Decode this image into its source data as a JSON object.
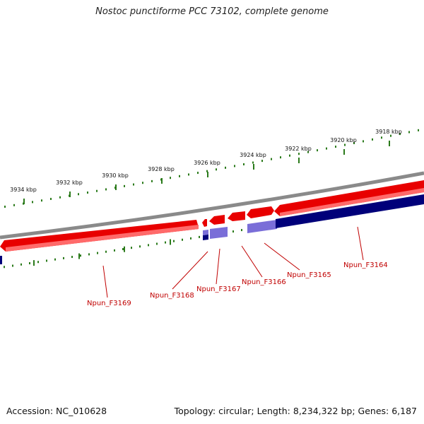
{
  "title": "Nostoc punctiforme PCC 73102, complete genome",
  "footer": {
    "accession": "Accession: NC_010628",
    "summary": "Topology: circular; Length: 8,234,322 bp; Genes: 6,187"
  },
  "colors": {
    "forward_gene": "#e80000",
    "forward_gene_light": "#ff6a6a",
    "reverse_gene": "#00007a",
    "reverse_gene_light": "#7a6ed8",
    "backbone": "#8a8a8a",
    "tick": "#2a7a1a",
    "label": "#c00000"
  },
  "ruler_outer": [
    {
      "label": "3934 kbp"
    },
    {
      "label": "3932 kbp"
    },
    {
      "label": "3930 kbp"
    },
    {
      "label": "3928 kbp"
    },
    {
      "label": "3926 kbp"
    },
    {
      "label": "3924 kbp"
    },
    {
      "label": "3922 kbp"
    },
    {
      "label": "3920 kbp"
    },
    {
      "label": "3918 kbp"
    }
  ],
  "genes": [
    {
      "name": "Npun_F3169",
      "strand": "forward"
    },
    {
      "name": "Npun_F3168",
      "strand": "forward"
    },
    {
      "name": "Npun_F3167",
      "strand": "forward"
    },
    {
      "name": "Npun_F3166",
      "strand": "forward"
    },
    {
      "name": "Npun_F3165",
      "strand": "forward"
    },
    {
      "name": "Npun_F3164",
      "strand": "forward"
    }
  ]
}
